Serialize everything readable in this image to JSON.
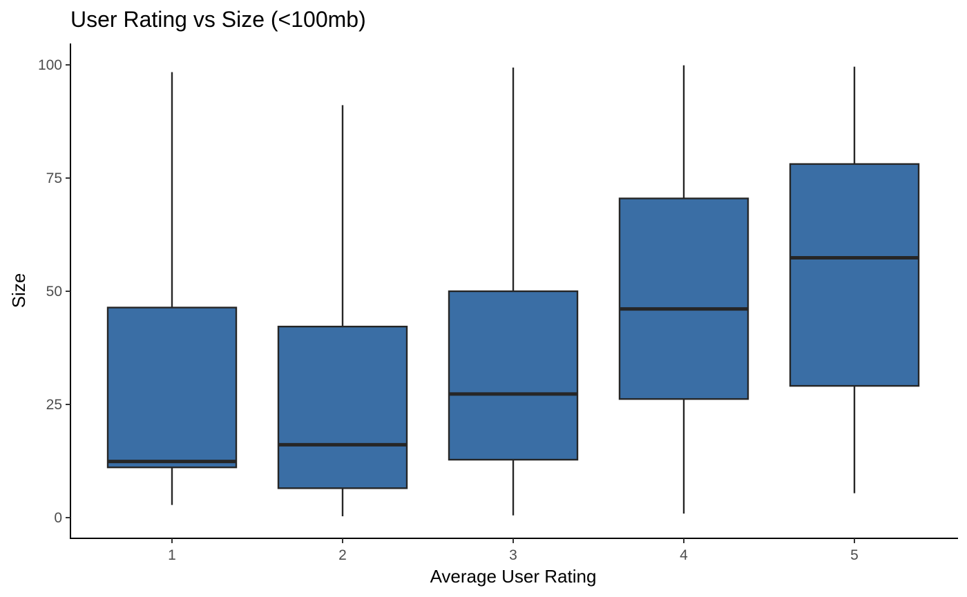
{
  "chart_data": {
    "type": "box",
    "title": "User Rating vs Size (<100mb)",
    "xlabel": "Average User Rating",
    "ylabel": "Size",
    "categories": [
      "1",
      "2",
      "3",
      "4",
      "5"
    ],
    "boxes": [
      {
        "category": "1",
        "whisker_low": 2.8,
        "q1": 11.1,
        "median": 12.4,
        "q3": 46.4,
        "whisker_high": 98.4
      },
      {
        "category": "2",
        "whisker_low": 0.3,
        "q1": 6.5,
        "median": 16.1,
        "q3": 42.2,
        "whisker_high": 91.1
      },
      {
        "category": "3",
        "whisker_low": 0.5,
        "q1": 12.8,
        "median": 27.3,
        "q3": 50.0,
        "whisker_high": 99.4
      },
      {
        "category": "4",
        "whisker_low": 0.9,
        "q1": 26.2,
        "median": 46.1,
        "q3": 70.5,
        "whisker_high": 99.9
      },
      {
        "category": "5",
        "whisker_low": 5.4,
        "q1": 29.1,
        "median": 57.4,
        "q3": 78.1,
        "whisker_high": 99.6
      }
    ],
    "y_ticks": [
      0,
      25,
      50,
      75,
      100
    ],
    "ylim": [
      -4.5,
      104.8
    ],
    "grid": false,
    "legend": "none",
    "fill_color": "#3a6ea5",
    "stroke_color": "#262626"
  }
}
